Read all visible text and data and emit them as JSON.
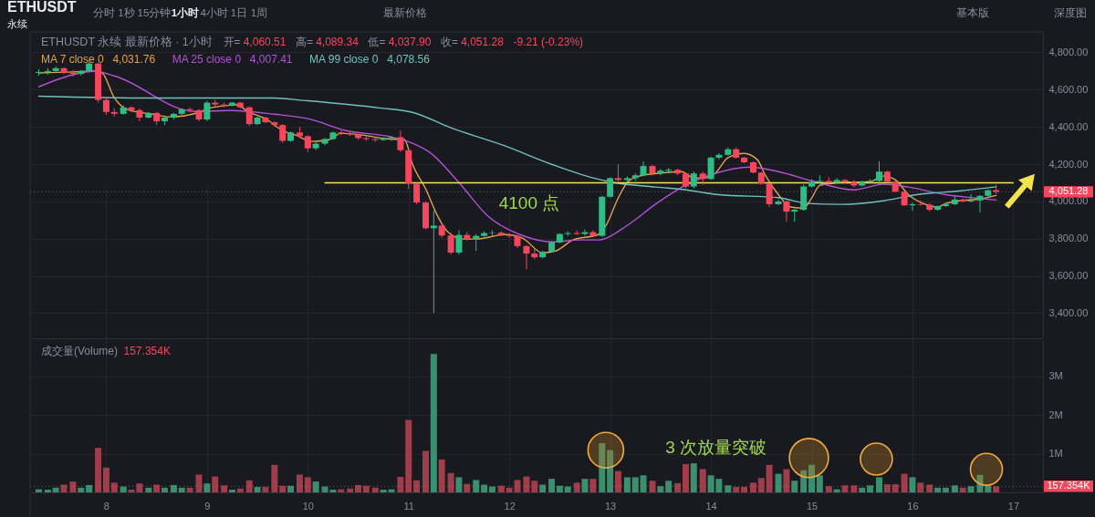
{
  "chart_data": [
    {
      "type": "candlestick",
      "title": "ETHUSDT",
      "subtitle": "永续",
      "x": [
        7.33,
        7.42,
        7.5,
        7.58,
        7.67,
        7.75,
        7.83,
        7.92,
        8,
        8.08,
        8.17,
        8.25,
        8.33,
        8.42,
        8.5,
        8.58,
        8.67,
        8.75,
        8.83,
        8.92,
        9,
        9.08,
        9.17,
        9.25,
        9.33,
        9.42,
        9.5,
        9.58,
        9.67,
        9.75,
        9.83,
        9.92,
        10,
        10.08,
        10.17,
        10.25,
        10.33,
        10.42,
        10.5,
        10.58,
        10.67,
        10.75,
        10.83,
        10.92,
        11,
        11.08,
        11.17,
        11.25,
        11.33,
        11.42,
        11.5,
        11.58,
        11.67,
        11.75,
        11.83,
        11.92,
        12,
        12.08,
        12.17,
        12.25,
        12.33,
        12.42,
        12.5,
        12.58,
        12.67,
        12.75,
        12.83,
        12.92,
        13,
        13.08,
        13.17,
        13.25,
        13.33,
        13.42,
        13.5,
        13.58,
        13.67,
        13.75,
        13.83,
        13.92,
        14,
        14.08,
        14.17,
        14.25,
        14.33,
        14.42,
        14.5,
        14.58,
        14.67,
        14.75,
        14.83,
        14.92,
        15,
        15.08,
        15.17,
        15.25,
        15.33,
        15.42,
        15.5,
        15.58,
        15.67,
        15.75,
        15.83,
        15.92,
        16,
        16.08,
        16.17,
        16.25,
        16.33,
        16.42,
        16.5,
        16.58,
        16.67,
        16.75,
        16.83
      ],
      "ohlc": [
        [
          4690,
          4710,
          4675,
          4695
        ],
        [
          4695,
          4715,
          4680,
          4700
        ],
        [
          4700,
          4725,
          4690,
          4715
        ],
        [
          4715,
          4720,
          4685,
          4690
        ],
        [
          4690,
          4705,
          4670,
          4685
        ],
        [
          4685,
          4705,
          4675,
          4700
        ],
        [
          4700,
          4750,
          4695,
          4740
        ],
        [
          4740,
          4745,
          4530,
          4545
        ],
        [
          4545,
          4555,
          4465,
          4480
        ],
        [
          4480,
          4500,
          4455,
          4470
        ],
        [
          4470,
          4515,
          4465,
          4505
        ],
        [
          4505,
          4510,
          4480,
          4490
        ],
        [
          4490,
          4500,
          4430,
          4450
        ],
        [
          4450,
          4480,
          4445,
          4475
        ],
        [
          4475,
          4480,
          4410,
          4430
        ],
        [
          4430,
          4455,
          4410,
          4450
        ],
        [
          4450,
          4475,
          4440,
          4470
        ],
        [
          4470,
          4500,
          4465,
          4495
        ],
        [
          4495,
          4505,
          4480,
          4490
        ],
        [
          4490,
          4495,
          4430,
          4440
        ],
        [
          4440,
          4540,
          4430,
          4530
        ],
        [
          4530,
          4545,
          4510,
          4520
        ],
        [
          4520,
          4530,
          4505,
          4515
        ],
        [
          4515,
          4535,
          4510,
          4530
        ],
        [
          4530,
          4535,
          4500,
          4505
        ],
        [
          4505,
          4510,
          4405,
          4415
        ],
        [
          4415,
          4455,
          4410,
          4450
        ],
        [
          4450,
          4455,
          4420,
          4425
        ],
        [
          4425,
          4430,
          4400,
          4410
        ],
        [
          4410,
          4415,
          4315,
          4325
        ],
        [
          4325,
          4375,
          4320,
          4370
        ],
        [
          4370,
          4400,
          4340,
          4350
        ],
        [
          4350,
          4355,
          4263,
          4285
        ],
        [
          4285,
          4320,
          4275,
          4310
        ],
        [
          4310,
          4340,
          4300,
          4335
        ],
        [
          4335,
          4375,
          4330,
          4370
        ],
        [
          4370,
          4380,
          4355,
          4365
        ],
        [
          4365,
          4375,
          4350,
          4360
        ],
        [
          4360,
          4365,
          4330,
          4340
        ],
        [
          4340,
          4350,
          4325,
          4335
        ],
        [
          4335,
          4345,
          4320,
          4330
        ],
        [
          4330,
          4345,
          4325,
          4340
        ],
        [
          4340,
          4350,
          4325,
          4345
        ],
        [
          4345,
          4380,
          4265,
          4275
        ],
        [
          4275,
          4280,
          4067,
          4095
        ],
        [
          4095,
          4100,
          3985,
          3994
        ],
        [
          3994,
          4000,
          3850,
          3856
        ],
        [
          3856,
          3950,
          3400,
          3870
        ],
        [
          3870,
          3880,
          3805,
          3817
        ],
        [
          3817,
          3830,
          3715,
          3725
        ],
        [
          3725,
          3845,
          3715,
          3820
        ],
        [
          3820,
          3835,
          3790,
          3800
        ],
        [
          3800,
          3825,
          3734,
          3815
        ],
        [
          3815,
          3840,
          3810,
          3830
        ],
        [
          3830,
          3845,
          3810,
          3832
        ],
        [
          3832,
          3840,
          3815,
          3820
        ],
        [
          3820,
          3830,
          3805,
          3815
        ],
        [
          3815,
          3820,
          3750,
          3760
        ],
        [
          3760,
          3765,
          3636,
          3720
        ],
        [
          3720,
          3745,
          3690,
          3700
        ],
        [
          3700,
          3735,
          3695,
          3730
        ],
        [
          3730,
          3785,
          3725,
          3780
        ],
        [
          3780,
          3830,
          3775,
          3825
        ],
        [
          3825,
          3840,
          3815,
          3830
        ],
        [
          3830,
          3845,
          3820,
          3825
        ],
        [
          3825,
          3850,
          3815,
          3835
        ],
        [
          3835,
          3845,
          3810,
          3815
        ],
        [
          3815,
          4030,
          3810,
          4025
        ],
        [
          4025,
          4130,
          4020,
          4125
        ],
        [
          4125,
          4200,
          4105,
          4115
        ],
        [
          4115,
          4135,
          4100,
          4125
        ],
        [
          4125,
          4150,
          4110,
          4140
        ],
        [
          4140,
          4215,
          4135,
          4190
        ],
        [
          4190,
          4195,
          4140,
          4150
        ],
        [
          4150,
          4175,
          4140,
          4165
        ],
        [
          4165,
          4180,
          4150,
          4170
        ],
        [
          4170,
          4175,
          4140,
          4150
        ],
        [
          4150,
          4155,
          4070,
          4080
        ],
        [
          4080,
          4160,
          4070,
          4150
        ],
        [
          4150,
          4160,
          4090,
          4120
        ],
        [
          4120,
          4240,
          4115,
          4235
        ],
        [
          4235,
          4260,
          4225,
          4250
        ],
        [
          4250,
          4290,
          4245,
          4280
        ],
        [
          4280,
          4290,
          4230,
          4235
        ],
        [
          4235,
          4240,
          4205,
          4210
        ],
        [
          4210,
          4215,
          4150,
          4155
        ],
        [
          4155,
          4160,
          4090,
          4095
        ],
        [
          4095,
          4100,
          3970,
          3985
        ],
        [
          3985,
          4010,
          3980,
          4000
        ],
        [
          4000,
          4005,
          3891,
          3945
        ],
        [
          3945,
          3960,
          3891,
          3955
        ],
        [
          3955,
          4090,
          3950,
          4080
        ],
        [
          4080,
          4120,
          4075,
          4105
        ],
        [
          4105,
          4140,
          4090,
          4110
        ],
        [
          4110,
          4130,
          4095,
          4100
        ],
        [
          4100,
          4125,
          4095,
          4115
        ],
        [
          4115,
          4120,
          4095,
          4105
        ],
        [
          4105,
          4115,
          4075,
          4085
        ],
        [
          4085,
          4110,
          4080,
          4105
        ],
        [
          4105,
          4120,
          4095,
          4110
        ],
        [
          4110,
          4215,
          4090,
          4160
        ],
        [
          4160,
          4165,
          4100,
          4105
        ],
        [
          4105,
          4110,
          4050,
          4052
        ],
        [
          4052,
          4055,
          3975,
          3979
        ],
        [
          3979,
          3995,
          3950,
          3985
        ],
        [
          3985,
          4005,
          3978,
          3982
        ],
        [
          3982,
          3990,
          3945,
          3955
        ],
        [
          3955,
          3978,
          3950,
          3975
        ],
        [
          3975,
          3990,
          3970,
          3985
        ],
        [
          3985,
          4030,
          3980,
          4010
        ],
        [
          4010,
          4015,
          3995,
          4000
        ],
        [
          4000,
          4040,
          3995,
          4005
        ],
        [
          4005,
          4035,
          3940,
          4030
        ],
        [
          4030,
          4065,
          4025,
          4060
        ],
        [
          4060.51,
          4089.34,
          4037.9,
          4051.28
        ]
      ],
      "colors": [
        "#2ebd85",
        "#2ebd85",
        "#2ebd85",
        "#f6465d",
        "#f6465d",
        "#2ebd85",
        "#2ebd85",
        "#f6465d",
        "#f6465d",
        "#f6465d",
        "#2ebd85",
        "#f6465d",
        "#f6465d",
        "#2ebd85",
        "#f6465d",
        "#2ebd85",
        "#2ebd85",
        "#2ebd85",
        "#f6465d",
        "#f6465d",
        "#2ebd85",
        "#f6465d",
        "#f6465d",
        "#2ebd85",
        "#f6465d",
        "#f6465d",
        "#2ebd85",
        "#f6465d",
        "#f6465d",
        "#f6465d",
        "#2ebd85",
        "#f6465d",
        "#f6465d",
        "#2ebd85",
        "#2ebd85",
        "#2ebd85",
        "#f6465d",
        "#f6465d",
        "#f6465d",
        "#f6465d",
        "#f6465d",
        "#2ebd85",
        "#2ebd85",
        "#f6465d",
        "#f6465d",
        "#f6465d",
        "#f6465d",
        "#2ebd85",
        "#f6465d",
        "#f6465d",
        "#2ebd85",
        "#f6465d",
        "#2ebd85",
        "#2ebd85",
        "#2ebd85",
        "#f6465d",
        "#f6465d",
        "#f6465d",
        "#f6465d",
        "#f6465d",
        "#2ebd85",
        "#2ebd85",
        "#2ebd85",
        "#2ebd85",
        "#f6465d",
        "#2ebd85",
        "#f6465d",
        "#2ebd85",
        "#2ebd85",
        "#f6465d",
        "#2ebd85",
        "#2ebd85",
        "#2ebd85",
        "#f6465d",
        "#2ebd85",
        "#2ebd85",
        "#f6465d",
        "#f6465d",
        "#2ebd85",
        "#f6465d",
        "#2ebd85",
        "#2ebd85",
        "#2ebd85",
        "#f6465d",
        "#f6465d",
        "#f6465d",
        "#f6465d",
        "#f6465d",
        "#2ebd85",
        "#f6465d",
        "#2ebd85",
        "#2ebd85",
        "#2ebd85",
        "#2ebd85",
        "#f6465d",
        "#2ebd85",
        "#f6465d",
        "#f6465d",
        "#2ebd85",
        "#2ebd85",
        "#2ebd85",
        "#f6465d",
        "#f6465d",
        "#f6465d",
        "#2ebd85",
        "#f6465d",
        "#f6465d",
        "#2ebd85",
        "#2ebd85",
        "#2ebd85",
        "#f6465d",
        "#2ebd85",
        "#2ebd85",
        "#2ebd85",
        "#f6465d"
      ],
      "series": [
        {
          "name": "MA 7 close 0",
          "type": "line",
          "color": "#e3a24a",
          "x": [
            7.33,
            7.67,
            7.88,
            7.96,
            8.08,
            8.21,
            8.46,
            8.63,
            8.92,
            9.04,
            9.29,
            9.42,
            9.58,
            9.75,
            9.88,
            10.04,
            10.21,
            10.33,
            10.54,
            10.79,
            10.96,
            11.04,
            11.17,
            11.29,
            11.38,
            11.54,
            11.67,
            11.96,
            12.13,
            12.33,
            12.46,
            12.63,
            12.88,
            12.96,
            13.08,
            13.17,
            13.29,
            13.46,
            13.71,
            13.83,
            13.92,
            14.04,
            14.17,
            14.33,
            14.46,
            14.54,
            14.67,
            14.79,
            14.92,
            15,
            15.08,
            15.29,
            15.58,
            15.71,
            15.83,
            15.96,
            16.13,
            16.25,
            16.33,
            16.46,
            16.67,
            16.83
          ],
          "values": [
            4690,
            4695,
            4700,
            4689,
            4557,
            4493,
            4468,
            4454,
            4478,
            4503,
            4518,
            4478,
            4444,
            4380,
            4356,
            4322,
            4331,
            4366,
            4356,
            4336,
            4331,
            4199,
            4067,
            3920,
            3842,
            3798,
            3798,
            3822,
            3803,
            3724,
            3734,
            3793,
            3822,
            3871,
            4018,
            4101,
            4136,
            4150,
            4160,
            4126,
            4126,
            4150,
            4235,
            4258,
            4224,
            4141,
            4036,
            3970,
            3964,
            4018,
            4086,
            4101,
            4106,
            4136,
            4116,
            4036,
            3984,
            3970,
            3989,
            4003,
            4013,
            4031.76
          ]
        },
        {
          "name": "MA 25 close 0",
          "type": "line",
          "color": "#b451d8",
          "x": [
            7.33,
            7.67,
            7.88,
            8.08,
            8.88,
            9.21,
            9.67,
            10,
            10.38,
            10.83,
            11.04,
            11.21,
            11.5,
            11.79,
            12.13,
            12.42,
            12.71,
            12.88,
            13.17,
            13.46,
            13.75,
            14.04,
            14.38,
            14.67,
            15,
            15.42,
            15.71,
            15.96,
            16.33,
            16.63,
            16.83
          ],
          "values": [
            4615,
            4680,
            4698,
            4674,
            4483,
            4488,
            4468,
            4444,
            4380,
            4346,
            4312,
            4263,
            4101,
            3920,
            3817,
            3783,
            3793,
            3793,
            3871,
            3989,
            4087,
            4150,
            4184,
            4160,
            4111,
            4062,
            4092,
            4077,
            4036,
            4018,
            4007.41
          ]
        },
        {
          "name": "MA 99 close 0",
          "type": "line",
          "color": "#6fc2c0",
          "x": [
            7.33,
            8.46,
            9.67,
            9.96,
            10.71,
            11.04,
            11.42,
            11.96,
            12.42,
            12.83,
            13.04,
            13.46,
            13.75,
            14.08,
            14.67,
            14.96,
            15.29,
            15.71,
            16.04,
            16.46,
            16.83
          ],
          "values": [
            4565,
            4555,
            4555,
            4542,
            4502,
            4478,
            4395,
            4297,
            4199,
            4126,
            4101,
            4077,
            4062,
            4036,
            4020,
            3989,
            3984,
            4003,
            4036,
            4056,
            4078.56
          ]
        },
        {
          "type": "line",
          "color": "#f2e64b",
          "x": [
            10.17,
            17
          ],
          "values": [
            4100,
            4100
          ]
        }
      ],
      "xlim": [
        7.29,
        17.25
      ],
      "xticks": [
        8,
        9,
        10,
        11,
        12,
        13,
        14,
        15,
        16,
        17
      ],
      "ylim": [
        3270,
        4910
      ],
      "yticks": [
        {
          "value": 3400,
          "label": "3,400.00"
        },
        {
          "value": 3600,
          "label": "3,600.00"
        },
        {
          "value": 3800,
          "label": "3,800.00"
        },
        {
          "value": 4000,
          "label": "4,000.00"
        },
        {
          "value": 4200,
          "label": "4,200.00"
        },
        {
          "value": 4400,
          "label": "4,400.00"
        },
        {
          "value": 4600,
          "label": "4,600.00"
        },
        {
          "value": 4800,
          "label": "4,800.00"
        }
      ],
      "tick_labels": "y",
      "grid": true,
      "legend": "top left",
      "ref_lines": [
        {
          "axis": "y",
          "value": 4051.28,
          "label": "4,051.28",
          "color": "#f6465d",
          "line_style": "dotted"
        }
      ],
      "annotations": [
        "分时",
        "1秒",
        "15分钟",
        "1小时",
        "4小时",
        "1日",
        "1周",
        "最新价格",
        "基本版",
        "深度图",
        "ETHUSDT 永续 最新价格 · 1小时",
        "开=",
        "4,060.51",
        "高=",
        "4,089.34",
        "低=",
        "4,037.90",
        "收=",
        "4,051.28",
        "-9.21 (-0.23%)",
        "4,031.76",
        "4,007.41",
        "4,078.56",
        "4100 点"
      ]
    },
    {
      "type": "bar",
      "title": "成交量(Volume)",
      "x": [
        7.33,
        7.42,
        7.5,
        7.58,
        7.67,
        7.75,
        7.83,
        7.92,
        8,
        8.08,
        8.17,
        8.25,
        8.33,
        8.42,
        8.5,
        8.58,
        8.67,
        8.75,
        8.83,
        8.92,
        9,
        9.08,
        9.17,
        9.25,
        9.33,
        9.42,
        9.5,
        9.58,
        9.67,
        9.75,
        9.83,
        9.92,
        10,
        10.08,
        10.17,
        10.25,
        10.33,
        10.42,
        10.5,
        10.58,
        10.67,
        10.75,
        10.83,
        10.92,
        11,
        11.08,
        11.17,
        11.25,
        11.33,
        11.42,
        11.5,
        11.58,
        11.67,
        11.75,
        11.83,
        11.92,
        12,
        12.08,
        12.17,
        12.25,
        12.33,
        12.42,
        12.5,
        12.58,
        12.67,
        12.75,
        12.83,
        12.92,
        13,
        13.08,
        13.17,
        13.25,
        13.33,
        13.42,
        13.5,
        13.58,
        13.67,
        13.75,
        13.83,
        13.92,
        14,
        14.08,
        14.17,
        14.25,
        14.33,
        14.42,
        14.5,
        14.58,
        14.67,
        14.75,
        14.83,
        14.92,
        15,
        15.08,
        15.17,
        15.25,
        15.33,
        15.42,
        15.5,
        15.58,
        15.67,
        15.75,
        15.83,
        15.92,
        16,
        16.08,
        16.17,
        16.25,
        16.33,
        16.42,
        16.5,
        16.58,
        16.67,
        16.75,
        16.83
      ],
      "values": [
        80000,
        70000,
        120000,
        200000,
        280000,
        120000,
        190000,
        1150000,
        640000,
        250000,
        150000,
        70000,
        230000,
        120000,
        200000,
        120000,
        190000,
        120000,
        120000,
        460000,
        230000,
        410000,
        180000,
        70000,
        100000,
        310000,
        140000,
        140000,
        710000,
        170000,
        170000,
        460000,
        390000,
        280000,
        150000,
        70000,
        80000,
        100000,
        190000,
        170000,
        120000,
        70000,
        80000,
        400000,
        1870000,
        310000,
        1070000,
        3570000,
        850000,
        500000,
        390000,
        220000,
        320000,
        200000,
        150000,
        170000,
        120000,
        320000,
        410000,
        300000,
        200000,
        350000,
        170000,
        150000,
        250000,
        350000,
        350000,
        1270000,
        1090000,
        550000,
        390000,
        390000,
        440000,
        300000,
        160000,
        300000,
        240000,
        730000,
        750000,
        600000,
        440000,
        350000,
        180000,
        140000,
        140000,
        250000,
        370000,
        710000,
        480000,
        600000,
        300000,
        570000,
        710000,
        440000,
        160000,
        80000,
        180000,
        180000,
        120000,
        180000,
        390000,
        210000,
        210000,
        480000,
        390000,
        250000,
        200000,
        120000,
        120000,
        180000,
        120000,
        160000,
        450000,
        180000,
        157354
      ],
      "colors": [
        "#3b8f6e",
        "#3b8f6e",
        "#3b8f6e",
        "#a03d4b",
        "#a03d4b",
        "#3b8f6e",
        "#3b8f6e",
        "#a03d4b",
        "#a03d4b",
        "#a03d4b",
        "#3b8f6e",
        "#a03d4b",
        "#a03d4b",
        "#3b8f6e",
        "#a03d4b",
        "#3b8f6e",
        "#3b8f6e",
        "#3b8f6e",
        "#a03d4b",
        "#a03d4b",
        "#3b8f6e",
        "#a03d4b",
        "#a03d4b",
        "#3b8f6e",
        "#a03d4b",
        "#a03d4b",
        "#3b8f6e",
        "#a03d4b",
        "#a03d4b",
        "#a03d4b",
        "#3b8f6e",
        "#a03d4b",
        "#a03d4b",
        "#3b8f6e",
        "#3b8f6e",
        "#3b8f6e",
        "#a03d4b",
        "#a03d4b",
        "#a03d4b",
        "#a03d4b",
        "#a03d4b",
        "#3b8f6e",
        "#3b8f6e",
        "#a03d4b",
        "#a03d4b",
        "#a03d4b",
        "#a03d4b",
        "#3b8f6e",
        "#a03d4b",
        "#a03d4b",
        "#3b8f6e",
        "#a03d4b",
        "#3b8f6e",
        "#3b8f6e",
        "#3b8f6e",
        "#a03d4b",
        "#a03d4b",
        "#a03d4b",
        "#a03d4b",
        "#a03d4b",
        "#3b8f6e",
        "#3b8f6e",
        "#3b8f6e",
        "#3b8f6e",
        "#a03d4b",
        "#3b8f6e",
        "#a03d4b",
        "#3b8f6e",
        "#3b8f6e",
        "#a03d4b",
        "#3b8f6e",
        "#3b8f6e",
        "#3b8f6e",
        "#a03d4b",
        "#3b8f6e",
        "#3b8f6e",
        "#a03d4b",
        "#a03d4b",
        "#3b8f6e",
        "#a03d4b",
        "#3b8f6e",
        "#3b8f6e",
        "#3b8f6e",
        "#a03d4b",
        "#a03d4b",
        "#a03d4b",
        "#a03d4b",
        "#a03d4b",
        "#3b8f6e",
        "#a03d4b",
        "#3b8f6e",
        "#3b8f6e",
        "#3b8f6e",
        "#3b8f6e",
        "#a03d4b",
        "#3b8f6e",
        "#a03d4b",
        "#a03d4b",
        "#3b8f6e",
        "#3b8f6e",
        "#3b8f6e",
        "#a03d4b",
        "#a03d4b",
        "#a03d4b",
        "#3b8f6e",
        "#a03d4b",
        "#a03d4b",
        "#3b8f6e",
        "#3b8f6e",
        "#3b8f6e",
        "#a03d4b",
        "#3b8f6e",
        "#3b8f6e",
        "#3b8f6e",
        "#a03d4b"
      ],
      "xlim": [
        7.29,
        17.25
      ],
      "xticks": [
        8,
        9,
        10,
        11,
        12,
        13,
        14,
        15,
        16,
        17
      ],
      "ylim": [
        0,
        3930000
      ],
      "yticks": [
        {
          "value": 1000000,
          "label": "1M"
        },
        {
          "value": 2000000,
          "label": "2M"
        },
        {
          "value": 3000000,
          "label": "3M"
        }
      ],
      "grid": true,
      "ref_lines": [
        {
          "axis": "y",
          "value": 157354,
          "label": "157.354K",
          "color": "#f6465d",
          "line_style": "dotted"
        }
      ],
      "annotations": [
        "157.354K",
        "3 次放量突破"
      ]
    }
  ]
}
